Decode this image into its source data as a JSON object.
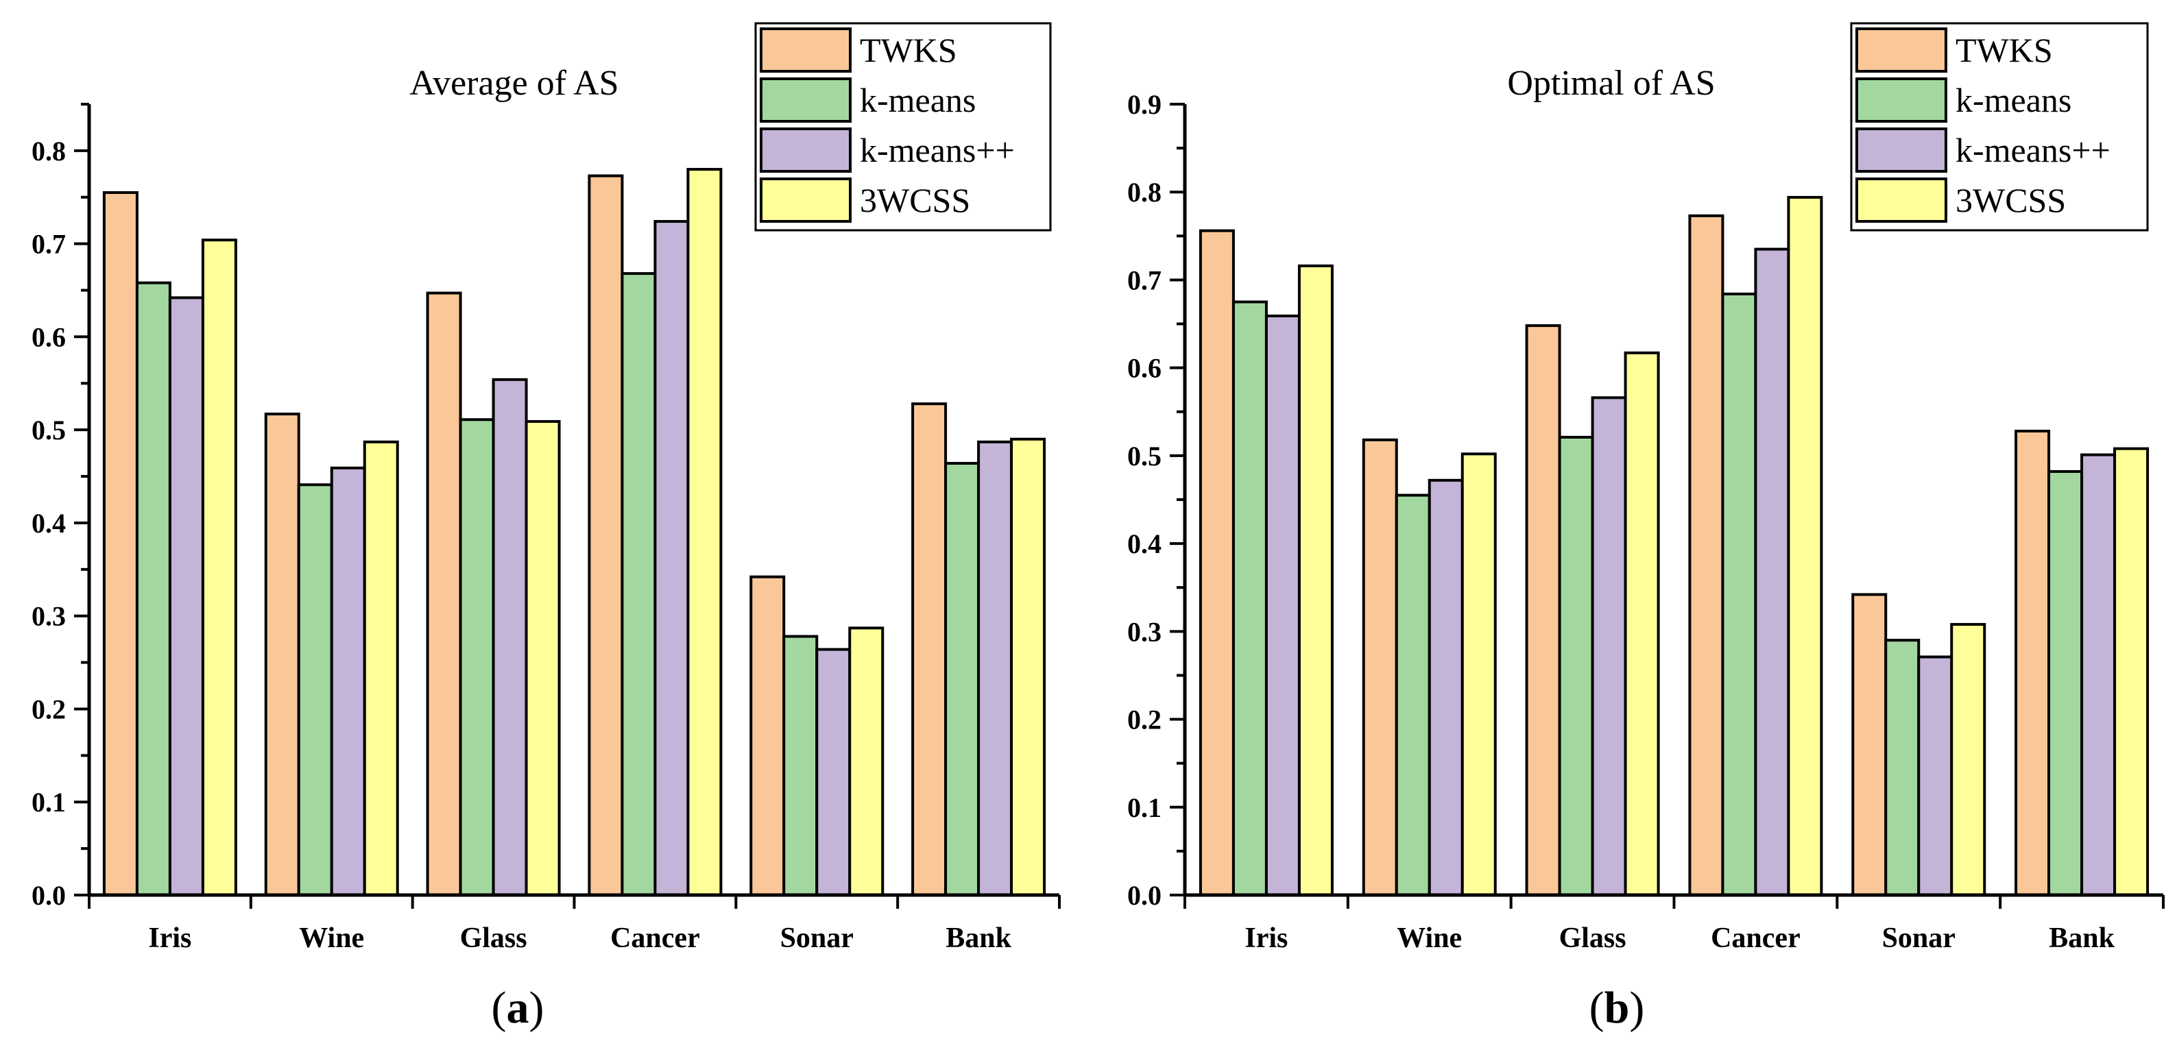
{
  "chart_data": [
    {
      "type": "bar",
      "title": "Average of AS",
      "panel_label": "a",
      "categories": [
        "Iris",
        "Wine",
        "Glass",
        "Cancer",
        "Sonar",
        "Bank"
      ],
      "series": [
        {
          "name": "TWKS",
          "color": "#FAC898",
          "values": [
            0.755,
            0.517,
            0.647,
            0.773,
            0.342,
            0.528
          ]
        },
        {
          "name": "k-means",
          "color": "#A2D8A0",
          "values": [
            0.658,
            0.441,
            0.511,
            0.668,
            0.278,
            0.464
          ]
        },
        {
          "name": "k-means++",
          "color": "#C3B4D8",
          "values": [
            0.642,
            0.459,
            0.554,
            0.724,
            0.264,
            0.487
          ]
        },
        {
          "name": "3WCSS",
          "color": "#FFFF99",
          "values": [
            0.704,
            0.487,
            0.509,
            0.78,
            0.287,
            0.49
          ]
        }
      ],
      "ylim": [
        0,
        0.85
      ],
      "yticks": [
        "0.0",
        "0.1",
        "0.2",
        "0.3",
        "0.4",
        "0.5",
        "0.6",
        "0.7",
        "0.8"
      ],
      "legend": "top-right"
    },
    {
      "type": "bar",
      "title": "Optimal of AS",
      "panel_label": "b",
      "categories": [
        "Iris",
        "Wine",
        "Glass",
        "Cancer",
        "Sonar",
        "Bank"
      ],
      "series": [
        {
          "name": "TWKS",
          "color": "#FAC898",
          "values": [
            0.756,
            0.518,
            0.648,
            0.773,
            0.342,
            0.528
          ]
        },
        {
          "name": "k-means",
          "color": "#A2D8A0",
          "values": [
            0.675,
            0.455,
            0.521,
            0.684,
            0.29,
            0.482
          ]
        },
        {
          "name": "k-means++",
          "color": "#C3B4D8",
          "values": [
            0.659,
            0.472,
            0.566,
            0.735,
            0.271,
            0.501
          ]
        },
        {
          "name": "3WCSS",
          "color": "#FFFF99",
          "values": [
            0.716,
            0.502,
            0.617,
            0.794,
            0.308,
            0.508
          ]
        }
      ],
      "ylim": [
        0,
        0.9
      ],
      "yticks": [
        "0.0",
        "0.1",
        "0.2",
        "0.3",
        "0.4",
        "0.5",
        "0.6",
        "0.7",
        "0.8",
        "0.9"
      ],
      "legend": "top-right"
    }
  ]
}
